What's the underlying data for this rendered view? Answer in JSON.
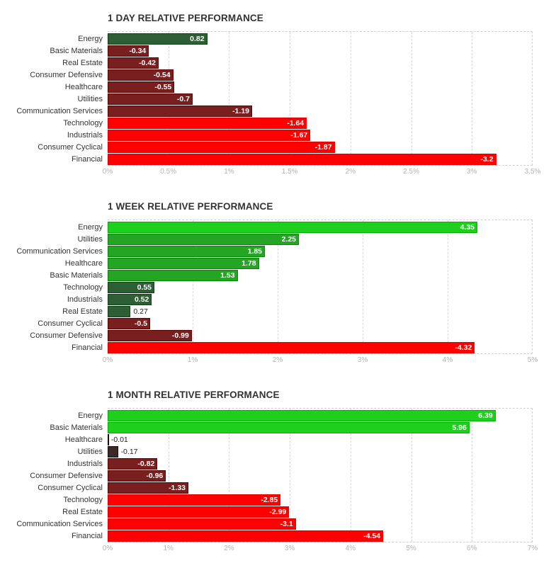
{
  "chart_data": [
    {
      "type": "bar",
      "orientation": "horizontal",
      "title": "1 DAY RELATIVE PERFORMANCE",
      "categories": [
        "Energy",
        "Basic Materials",
        "Real Estate",
        "Consumer Defensive",
        "Healthcare",
        "Utilities",
        "Communication Services",
        "Technology",
        "Industrials",
        "Consumer Cyclical",
        "Financial"
      ],
      "values": [
        0.82,
        -0.34,
        -0.42,
        -0.54,
        -0.55,
        -0.7,
        -1.19,
        -1.64,
        -1.67,
        -1.87,
        -3.2
      ],
      "value_labels": [
        "0.82",
        "-0.34",
        "-0.42",
        "-0.54",
        "-0.55",
        "-0.7",
        "-1.19",
        "-1.64",
        "-1.67",
        "-1.87",
        "-3.2"
      ],
      "xlim": [
        0,
        3.5
      ],
      "xticks": [
        "0%",
        "0.5%",
        "1%",
        "1.5%",
        "2%",
        "2.5%",
        "3%",
        "3.5%"
      ],
      "bar_length": "absolute value",
      "grid": true
    },
    {
      "type": "bar",
      "orientation": "horizontal",
      "title": "1 WEEK RELATIVE PERFORMANCE",
      "categories": [
        "Energy",
        "Utilities",
        "Communication Services",
        "Healthcare",
        "Basic Materials",
        "Technology",
        "Industrials",
        "Real Estate",
        "Consumer Cyclical",
        "Consumer Defensive",
        "Financial"
      ],
      "values": [
        4.35,
        2.25,
        1.85,
        1.78,
        1.53,
        0.55,
        0.52,
        0.27,
        -0.5,
        -0.99,
        -4.32
      ],
      "value_labels": [
        "4.35",
        "2.25",
        "1.85",
        "1.78",
        "1.53",
        "0.55",
        "0.52",
        "0.27",
        "-0.5",
        "-0.99",
        "-4.32"
      ],
      "xlim": [
        0,
        5
      ],
      "xticks": [
        "0%",
        "1%",
        "2%",
        "3%",
        "4%",
        "5%"
      ],
      "bar_length": "absolute value",
      "grid": true
    },
    {
      "type": "bar",
      "orientation": "horizontal",
      "title": "1 MONTH RELATIVE PERFORMANCE",
      "categories": [
        "Energy",
        "Basic Materials",
        "Healthcare",
        "Utilities",
        "Industrials",
        "Consumer Defensive",
        "Consumer Cyclical",
        "Technology",
        "Real Estate",
        "Communication Services",
        "Financial"
      ],
      "values": [
        6.39,
        5.96,
        -0.01,
        -0.17,
        -0.82,
        -0.96,
        -1.33,
        -2.85,
        -2.99,
        -3.1,
        -4.54
      ],
      "value_labels": [
        "6.39",
        "5.96",
        "-0.01",
        "-0.17",
        "-0.82",
        "-0.96",
        "-1.33",
        "-2.85",
        "-2.99",
        "-3.1",
        "-4.54"
      ],
      "xlim": [
        0,
        7
      ],
      "xticks": [
        "0%",
        "1%",
        "2%",
        "3%",
        "4%",
        "5%",
        "6%",
        "7%"
      ],
      "bar_length": "absolute value",
      "grid": true
    }
  ],
  "colors": {
    "positive_strong": "#1ecf1e",
    "positive_mid": "#24a524",
    "positive_weak": "#2e5e33",
    "negative_weak": "#3a2a2a",
    "negative_mid": "#7a1f1f",
    "negative_strong": "#ff0000",
    "title": "#333333",
    "gridline": "#d9d9d9",
    "tick_label": "#b3b3b3"
  }
}
